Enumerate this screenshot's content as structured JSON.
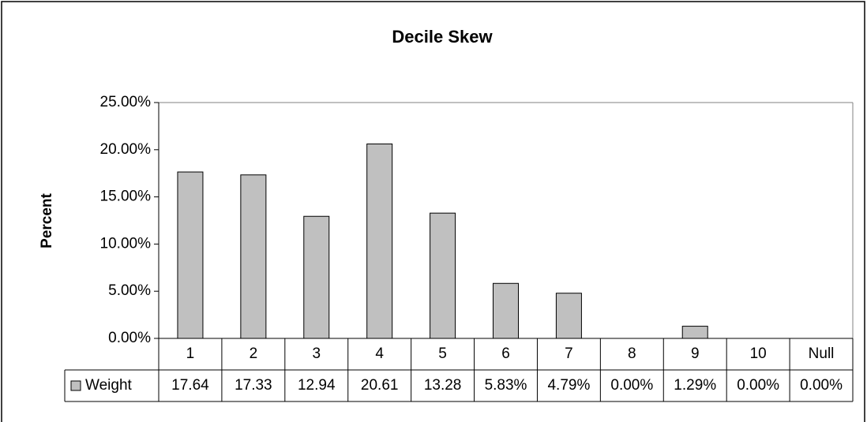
{
  "chart_data": {
    "type": "bar",
    "title": "Decile Skew",
    "y_label": "Percent",
    "categories": [
      "1",
      "2",
      "3",
      "4",
      "5",
      "6",
      "7",
      "8",
      "9",
      "10",
      "Null"
    ],
    "series": [
      {
        "name": "Weight",
        "color": "#c0c0c0",
        "values": [
          17.64,
          17.33,
          12.94,
          20.61,
          13.28,
          5.83,
          4.79,
          0,
          1.29,
          0,
          0
        ],
        "value_labels": [
          "17.64",
          "17.33",
          "12.94",
          "20.61",
          "13.28",
          "5.83%",
          "4.79%",
          "0.00%",
          "1.29%",
          "0.00%",
          "0.00%"
        ]
      }
    ],
    "ylim": [
      0,
      25
    ],
    "yticks": [
      {
        "value": 0,
        "label": "0.00%"
      },
      {
        "value": 5,
        "label": "5.00%"
      },
      {
        "value": 10,
        "label": "10.00%"
      },
      {
        "value": 15,
        "label": "15.00%"
      },
      {
        "value": 20,
        "label": "20.00%"
      },
      {
        "value": 25,
        "label": "25.00%"
      }
    ],
    "grid": false,
    "data_table": true
  }
}
